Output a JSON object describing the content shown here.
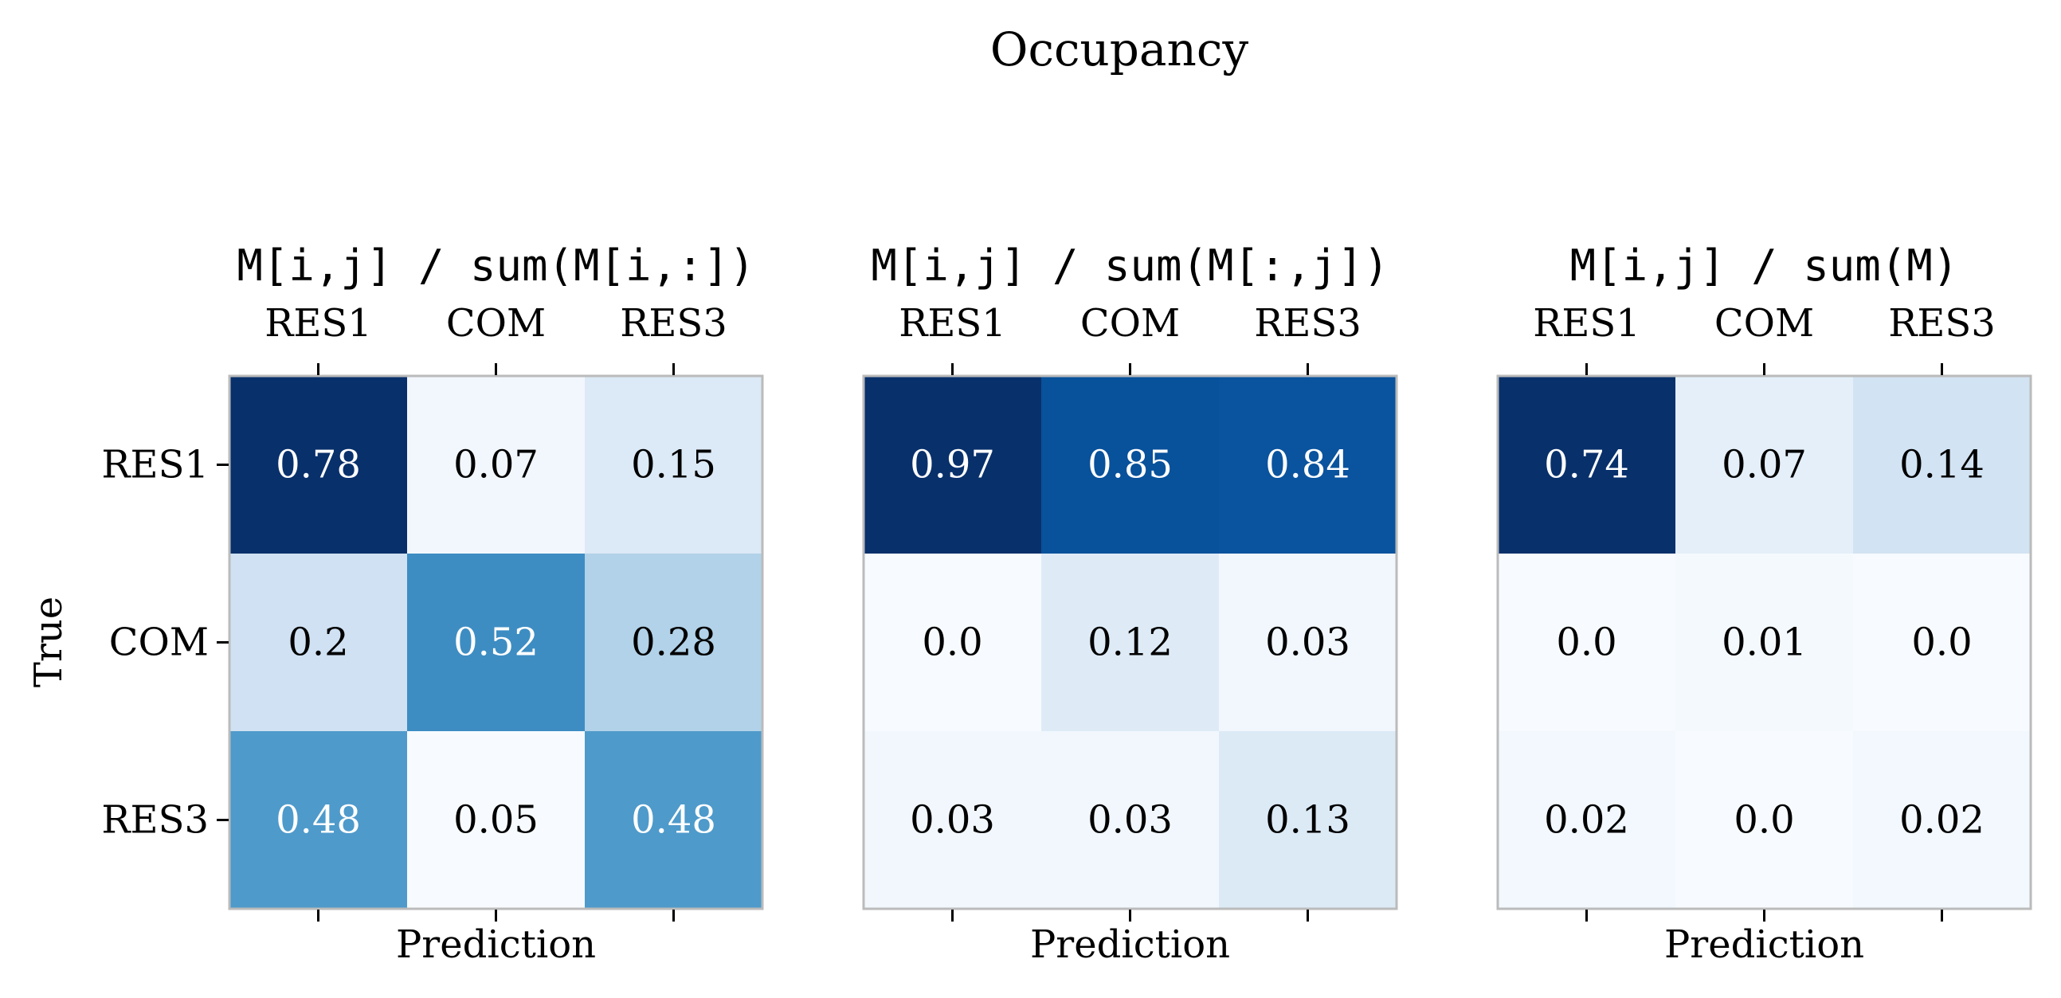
{
  "chart_data": {
    "type": "heatmap",
    "title": "Occupancy",
    "ylabel": "True",
    "colormap": "Blues",
    "frame_color": "#bbbbbb",
    "panels": [
      {
        "title": "M[i,j] / sum(M[i,:])",
        "xlabel": "Prediction",
        "x_categories": [
          "RES1",
          "COM",
          "RES3"
        ],
        "y_categories": [
          "RES1",
          "COM",
          "RES3"
        ],
        "values": [
          [
            0.78,
            0.07,
            0.15
          ],
          [
            0.2,
            0.52,
            0.28
          ],
          [
            0.48,
            0.05,
            0.48
          ]
        ],
        "labels": [
          [
            "0.78",
            "0.07",
            "0.15"
          ],
          [
            "0.2",
            "0.52",
            "0.28"
          ],
          [
            "0.48",
            "0.05",
            "0.48"
          ]
        ],
        "vmin": 0.05,
        "vmax": 0.78
      },
      {
        "title": "M[i,j] / sum(M[:,j])",
        "xlabel": "Prediction",
        "x_categories": [
          "RES1",
          "COM",
          "RES3"
        ],
        "y_categories": [
          "RES1",
          "COM",
          "RES3"
        ],
        "values": [
          [
            0.97,
            0.85,
            0.84
          ],
          [
            0.0,
            0.12,
            0.03
          ],
          [
            0.03,
            0.03,
            0.13
          ]
        ],
        "labels": [
          [
            "0.97",
            "0.85",
            "0.84"
          ],
          [
            "0.0",
            "0.12",
            "0.03"
          ],
          [
            "0.03",
            "0.03",
            "0.13"
          ]
        ],
        "vmin": 0.0,
        "vmax": 0.97
      },
      {
        "title": "M[i,j] / sum(M)",
        "xlabel": "Prediction",
        "x_categories": [
          "RES1",
          "COM",
          "RES3"
        ],
        "y_categories": [
          "RES1",
          "COM",
          "RES3"
        ],
        "values": [
          [
            0.74,
            0.07,
            0.14
          ],
          [
            0.0,
            0.01,
            0.0
          ],
          [
            0.02,
            0.0,
            0.02
          ]
        ],
        "labels": [
          [
            "0.74",
            "0.07",
            "0.14"
          ],
          [
            "0.0",
            "0.01",
            "0.0"
          ],
          [
            "0.02",
            "0.0",
            "0.02"
          ]
        ],
        "vmin": 0.0,
        "vmax": 0.74
      }
    ]
  }
}
